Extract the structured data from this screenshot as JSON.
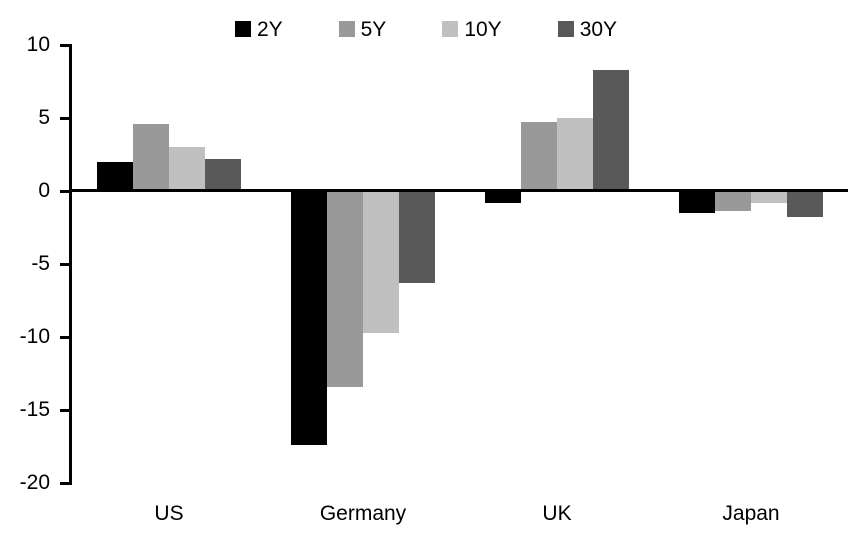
{
  "chart_data": {
    "type": "bar",
    "title": "",
    "categories": [
      "US",
      "Germany",
      "UK",
      "Japan"
    ],
    "series": [
      {
        "name": "2Y",
        "color": "#000000",
        "values": [
          2.0,
          -17.4,
          -0.8,
          -1.5
        ]
      },
      {
        "name": "5Y",
        "color": "#999999",
        "values": [
          4.6,
          -13.4,
          4.7,
          -1.4
        ]
      },
      {
        "name": "10Y",
        "color": "#c0c0c0",
        "values": [
          3.0,
          -9.7,
          5.0,
          -0.8
        ]
      },
      {
        "name": "30Y",
        "color": "#595959",
        "values": [
          2.2,
          -6.3,
          8.3,
          -1.8
        ]
      }
    ],
    "ylim": [
      -20,
      10
    ],
    "yticks": [
      10,
      5,
      0,
      -5,
      -10,
      -15,
      -20
    ],
    "grid": false,
    "legend_position": "top",
    "axis_color": "#000000"
  }
}
